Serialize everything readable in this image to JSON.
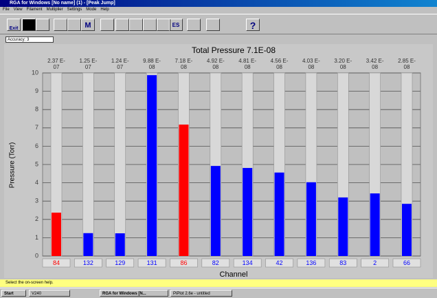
{
  "window": {
    "title": "RGA for Windows [No name] (1) - [Peak Jump]",
    "menu": [
      "File",
      "View",
      "Filament",
      "Multiplier",
      "Settings",
      "Mode",
      "Help"
    ],
    "toolbar": {
      "exit": "Exit",
      "m": "M",
      "es": "ES",
      "help": "?"
    },
    "accuracy": "Accuracy: 3",
    "status": "Select the on-screen help."
  },
  "taskbar": {
    "start": "Start",
    "items": [
      "V240",
      "RGA for Windows [N...",
      "PiPlot 2.6e - untitled"
    ]
  },
  "chart_data": {
    "type": "bar",
    "title": "Total Pressure 7.1E-08",
    "y_label": "Pressure (Torr)",
    "x_label": "Channel",
    "categories": [
      "84",
      "132",
      "129",
      "131",
      "86",
      "82",
      "134",
      "42",
      "136",
      "83",
      "2",
      "66"
    ],
    "values": [
      2.37,
      1.25,
      1.24,
      9.88,
      7.18,
      4.92,
      4.81,
      4.56,
      4.03,
      3.2,
      3.42,
      2.85
    ],
    "value_labels": [
      "2.37 E-07",
      "1.25 E-07",
      "1.24 E-07",
      "9.88 E-08",
      "7.18 E-08",
      "4.92 E-08",
      "4.81 E-08",
      "4.56 E-08",
      "4.03 E-08",
      "3.20 E-08",
      "3.42 E-08",
      "2.85 E-08"
    ],
    "colors": [
      "#ff0000",
      "#0000ff",
      "#0000ff",
      "#0000ff",
      "#ff0000",
      "#0000ff",
      "#0000ff",
      "#0000ff",
      "#0000ff",
      "#0000ff",
      "#0000ff",
      "#0000ff"
    ],
    "ylim": [
      0,
      10
    ],
    "yticks": [
      0,
      1,
      2,
      3,
      4,
      5,
      6,
      7,
      8,
      9,
      10
    ],
    "grid": true
  }
}
